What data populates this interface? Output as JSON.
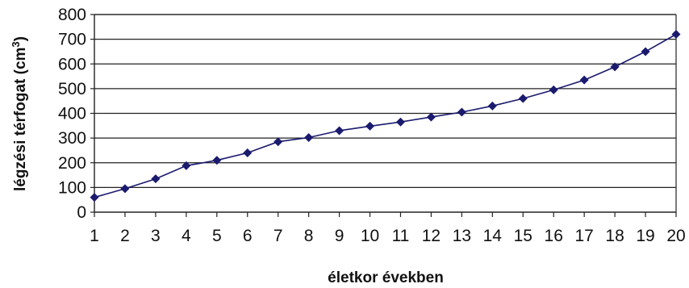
{
  "chart_data": {
    "type": "line",
    "xlabel": "életkor években",
    "ylabel": {
      "text": "légzési térfogat (cm",
      "superscript": "3",
      "close": ")"
    },
    "x": [
      1,
      2,
      3,
      4,
      5,
      6,
      7,
      8,
      9,
      10,
      11,
      12,
      13,
      14,
      15,
      16,
      17,
      18,
      19,
      20
    ],
    "x_tick_labels": [
      "1",
      "2",
      "3",
      "4",
      "5",
      "6",
      "7",
      "8",
      "9",
      "10",
      "11",
      "12",
      "13",
      "14",
      "15",
      "16",
      "17",
      "18",
      "19",
      "20"
    ],
    "series": [
      {
        "values": [
          60,
          95,
          135,
          188,
          210,
          240,
          285,
          302,
          330,
          348,
          365,
          385,
          405,
          430,
          460,
          495,
          535,
          588,
          650,
          720
        ],
        "color": "#1a1a6e",
        "marker": "diamond"
      }
    ],
    "ylim": [
      0,
      800
    ],
    "y_ticks": [
      0,
      100,
      200,
      300,
      400,
      500,
      600,
      700,
      800
    ],
    "y_tick_labels": [
      "0",
      "100",
      "200",
      "300",
      "400",
      "500",
      "600",
      "700",
      "800"
    ],
    "grid": {
      "horizontal": true,
      "vertical": false
    },
    "legend": "none"
  }
}
